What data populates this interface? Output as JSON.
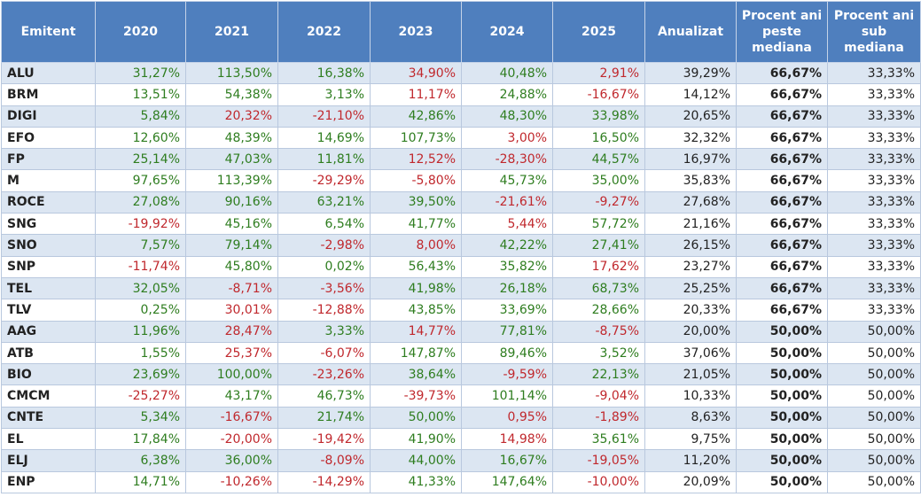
{
  "table": {
    "header": [
      "Emitent",
      "2020",
      "2021",
      "2022",
      "2023",
      "2024",
      "2025",
      "Anualizat",
      "Procent ani peste mediana",
      "Procent ani sub mediana"
    ],
    "rows": [
      [
        "ALU",
        "31,27%",
        "113,50%",
        "16,38%",
        "34,90%",
        "40,48%",
        "2,91%",
        "39,29%",
        "66,67%",
        "33,33%"
      ],
      [
        "BRM",
        "13,51%",
        "54,38%",
        "3,13%",
        "11,17%",
        "24,88%",
        "-16,67%",
        "14,12%",
        "66,67%",
        "33,33%"
      ],
      [
        "DIGI",
        "5,84%",
        "20,32%",
        "-21,10%",
        "42,86%",
        "48,30%",
        "33,98%",
        "20,65%",
        "66,67%",
        "33,33%"
      ],
      [
        "EFO",
        "12,60%",
        "48,39%",
        "14,69%",
        "107,73%",
        "3,00%",
        "16,50%",
        "32,32%",
        "66,67%",
        "33,33%"
      ],
      [
        "FP",
        "25,14%",
        "47,03%",
        "11,81%",
        "12,52%",
        "-28,30%",
        "44,57%",
        "16,97%",
        "66,67%",
        "33,33%"
      ],
      [
        "M",
        "97,65%",
        "113,39%",
        "-29,29%",
        "-5,80%",
        "45,73%",
        "35,00%",
        "35,83%",
        "66,67%",
        "33,33%"
      ],
      [
        "ROCE",
        "27,08%",
        "90,16%",
        "63,21%",
        "39,50%",
        "-21,61%",
        "-9,27%",
        "27,68%",
        "66,67%",
        "33,33%"
      ],
      [
        "SNG",
        "-19,92%",
        "45,16%",
        "6,54%",
        "41,77%",
        "5,44%",
        "57,72%",
        "21,16%",
        "66,67%",
        "33,33%"
      ],
      [
        "SNO",
        "7,57%",
        "79,14%",
        "-2,98%",
        "8,00%",
        "42,22%",
        "27,41%",
        "26,15%",
        "66,67%",
        "33,33%"
      ],
      [
        "SNP",
        "-11,74%",
        "45,80%",
        "0,02%",
        "56,43%",
        "35,82%",
        "17,62%",
        "23,27%",
        "66,67%",
        "33,33%"
      ],
      [
        "TEL",
        "32,05%",
        "-8,71%",
        "-3,56%",
        "41,98%",
        "26,18%",
        "68,73%",
        "25,25%",
        "66,67%",
        "33,33%"
      ],
      [
        "TLV",
        "0,25%",
        "30,01%",
        "-12,88%",
        "43,85%",
        "33,69%",
        "28,66%",
        "20,33%",
        "66,67%",
        "33,33%"
      ],
      [
        "AAG",
        "11,96%",
        "28,47%",
        "3,33%",
        "14,77%",
        "77,81%",
        "-8,75%",
        "20,00%",
        "50,00%",
        "50,00%"
      ],
      [
        "ATB",
        "1,55%",
        "25,37%",
        "-6,07%",
        "147,87%",
        "89,46%",
        "3,52%",
        "37,06%",
        "50,00%",
        "50,00%"
      ],
      [
        "BIO",
        "23,69%",
        "100,00%",
        "-23,26%",
        "38,64%",
        "-9,59%",
        "22,13%",
        "21,05%",
        "50,00%",
        "50,00%"
      ],
      [
        "CMCM",
        "-25,27%",
        "43,17%",
        "46,73%",
        "-39,73%",
        "101,14%",
        "-9,04%",
        "10,33%",
        "50,00%",
        "50,00%"
      ],
      [
        "CNTE",
        "5,34%",
        "-16,67%",
        "21,74%",
        "50,00%",
        "0,95%",
        "-1,89%",
        "8,63%",
        "50,00%",
        "50,00%"
      ],
      [
        "EL",
        "17,84%",
        "-20,00%",
        "-19,42%",
        "41,90%",
        "14,98%",
        "35,61%",
        "9,75%",
        "50,00%",
        "50,00%"
      ],
      [
        "ELJ",
        "6,38%",
        "36,00%",
        "-8,09%",
        "44,00%",
        "16,67%",
        "-19,05%",
        "11,20%",
        "50,00%",
        "50,00%"
      ],
      [
        "ENP",
        "14,71%",
        "-10,26%",
        "-14,29%",
        "41,33%",
        "147,64%",
        "-10,00%",
        "20,09%",
        "50,00%",
        "50,00%"
      ]
    ],
    "cell_colors": [
      [
        "#2e7d1f",
        "#2e7d1f",
        "#2e7d1f",
        "#c0282d",
        "#2e7d1f",
        "#c0282d"
      ],
      [
        "#2e7d1f",
        "#2e7d1f",
        "#2e7d1f",
        "#c0282d",
        "#2e7d1f",
        "#c0282d"
      ],
      [
        "#2e7d1f",
        "#c0282d",
        "#c0282d",
        "#2e7d1f",
        "#2e7d1f",
        "#2e7d1f"
      ],
      [
        "#2e7d1f",
        "#2e7d1f",
        "#2e7d1f",
        "#2e7d1f",
        "#c0282d",
        "#2e7d1f"
      ],
      [
        "#2e7d1f",
        "#2e7d1f",
        "#2e7d1f",
        "#c0282d",
        "#c0282d",
        "#2e7d1f"
      ],
      [
        "#2e7d1f",
        "#2e7d1f",
        "#c0282d",
        "#c0282d",
        "#2e7d1f",
        "#2e7d1f"
      ],
      [
        "#2e7d1f",
        "#2e7d1f",
        "#2e7d1f",
        "#2e7d1f",
        "#c0282d",
        "#c0282d"
      ],
      [
        "#c0282d",
        "#2e7d1f",
        "#2e7d1f",
        "#2e7d1f",
        "#c0282d",
        "#2e7d1f"
      ],
      [
        "#2e7d1f",
        "#2e7d1f",
        "#c0282d",
        "#c0282d",
        "#2e7d1f",
        "#2e7d1f"
      ],
      [
        "#c0282d",
        "#2e7d1f",
        "#2e7d1f",
        "#2e7d1f",
        "#2e7d1f",
        "#c0282d"
      ],
      [
        "#2e7d1f",
        "#c0282d",
        "#c0282d",
        "#2e7d1f",
        "#2e7d1f",
        "#2e7d1f"
      ],
      [
        "#2e7d1f",
        "#c0282d",
        "#c0282d",
        "#2e7d1f",
        "#2e7d1f",
        "#2e7d1f"
      ],
      [
        "#2e7d1f",
        "#c0282d",
        "#2e7d1f",
        "#c0282d",
        "#2e7d1f",
        "#c0282d"
      ],
      [
        "#2e7d1f",
        "#c0282d",
        "#c0282d",
        "#2e7d1f",
        "#2e7d1f",
        "#2e7d1f"
      ],
      [
        "#2e7d1f",
        "#2e7d1f",
        "#c0282d",
        "#2e7d1f",
        "#c0282d",
        "#2e7d1f"
      ],
      [
        "#c0282d",
        "#2e7d1f",
        "#2e7d1f",
        "#c0282d",
        "#2e7d1f",
        "#c0282d"
      ],
      [
        "#2e7d1f",
        "#c0282d",
        "#2e7d1f",
        "#2e7d1f",
        "#c0282d",
        "#c0282d"
      ],
      [
        "#2e7d1f",
        "#c0282d",
        "#c0282d",
        "#2e7d1f",
        "#c0282d",
        "#2e7d1f"
      ],
      [
        "#2e7d1f",
        "#2e7d1f",
        "#c0282d",
        "#2e7d1f",
        "#2e7d1f",
        "#c0282d"
      ],
      [
        "#2e7d1f",
        "#c0282d",
        "#c0282d",
        "#2e7d1f",
        "#2e7d1f",
        "#c0282d"
      ]
    ]
  }
}
